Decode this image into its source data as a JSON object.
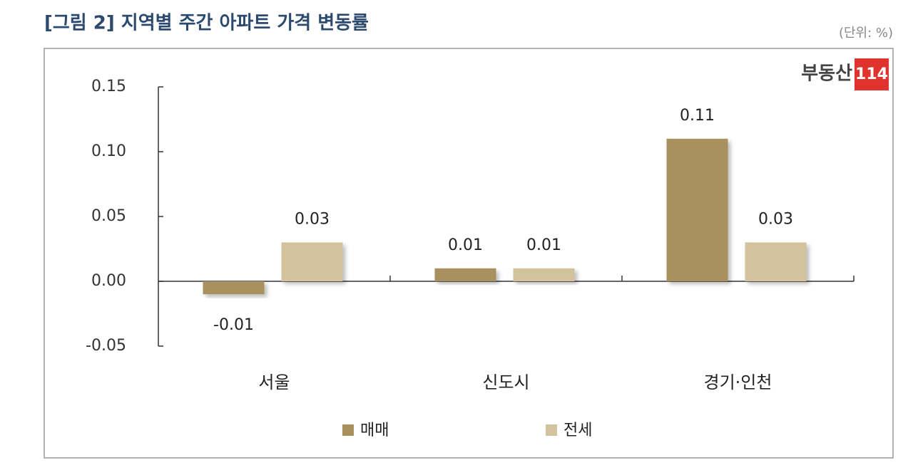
{
  "chart_data": {
    "type": "bar",
    "title": "[그림 2] 지역별 주간 아파트 가격 변동률",
    "subtitle": "(단위: %)",
    "logo": {
      "name": "부동산",
      "number": "114"
    },
    "categories": [
      "서울",
      "신도시",
      "경기·인천"
    ],
    "series": [
      {
        "name": "매매",
        "color": "#a8915f",
        "values": [
          -0.01,
          0.01,
          0.11
        ]
      },
      {
        "name": "전세",
        "color": "#d2c29e",
        "values": [
          0.03,
          0.01,
          0.03
        ]
      }
    ],
    "ylim": [
      -0.05,
      0.15
    ],
    "yticks": [
      -0.05,
      {
        "value": 0,
        "label": "0.00"
      },
      0.05,
      {
        "value": 0.1,
        "label": "0.10"
      },
      0.15
    ],
    "legend": "bottom"
  }
}
